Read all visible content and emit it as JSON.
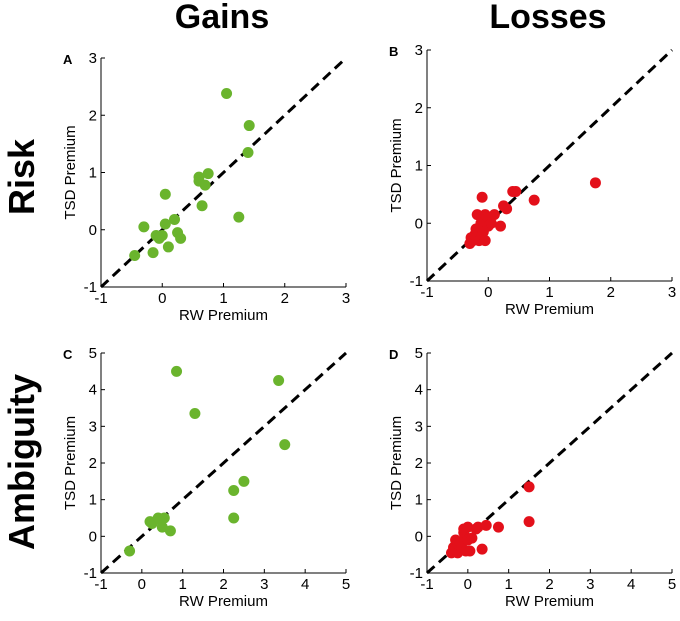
{
  "headers": {
    "columns": [
      "Gains",
      "Losses"
    ],
    "rows": [
      "Risk",
      "Ambiguity"
    ]
  },
  "colors": {
    "gains": "#6ab42d",
    "losses": "#e3101a",
    "identity_line": "#000000"
  },
  "chart_data": [
    {
      "panel": "A",
      "type": "scatter",
      "title": "",
      "xlabel": "RW Premium",
      "ylabel": "TSD Premium",
      "xlim": [
        -1,
        3
      ],
      "ylim": [
        -1,
        3
      ],
      "xticks": [
        -1,
        0,
        1,
        2,
        3
      ],
      "yticks": [
        -1,
        0,
        1,
        2,
        3
      ],
      "identity_line": true,
      "color": "#6ab42d",
      "x": [
        -0.45,
        -0.3,
        -0.15,
        -0.1,
        -0.05,
        0.0,
        0.05,
        0.05,
        0.1,
        0.2,
        0.25,
        0.3,
        0.6,
        0.6,
        0.65,
        0.7,
        0.75,
        1.05,
        1.25,
        1.4,
        1.42
      ],
      "y": [
        -0.45,
        0.05,
        -0.4,
        -0.1,
        -0.15,
        -0.1,
        0.62,
        0.1,
        -0.3,
        0.18,
        -0.05,
        -0.15,
        0.92,
        0.85,
        0.42,
        0.78,
        0.98,
        2.38,
        0.22,
        1.35,
        1.82
      ]
    },
    {
      "panel": "B",
      "type": "scatter",
      "title": "",
      "xlabel": "RW Premium",
      "ylabel": "TSD Premium",
      "xlim": [
        -1,
        3
      ],
      "ylim": [
        -1,
        3
      ],
      "xticks": [
        -1,
        0,
        1,
        2,
        3
      ],
      "yticks": [
        -1,
        0,
        1,
        2,
        3
      ],
      "identity_line": true,
      "color": "#e3101a",
      "x": [
        -0.3,
        -0.28,
        -0.25,
        -0.22,
        -0.2,
        -0.18,
        -0.15,
        -0.12,
        -0.1,
        -0.1,
        -0.08,
        -0.05,
        -0.05,
        0.0,
        0.0,
        0.05,
        0.1,
        0.2,
        0.25,
        0.3,
        0.4,
        0.45,
        0.75,
        1.75
      ],
      "y": [
        -0.35,
        -0.25,
        -0.3,
        -0.2,
        -0.1,
        0.15,
        -0.3,
        0.0,
        -0.2,
        0.45,
        -0.15,
        0.15,
        -0.3,
        0.1,
        -0.05,
        0.0,
        0.15,
        -0.05,
        0.3,
        0.25,
        0.55,
        0.55,
        0.4,
        0.7
      ]
    },
    {
      "panel": "C",
      "type": "scatter",
      "title": "",
      "xlabel": "RW Premium",
      "ylabel": "TSD Premium",
      "xlim": [
        -1,
        5
      ],
      "ylim": [
        -1,
        5
      ],
      "xticks": [
        -1,
        0,
        1,
        2,
        3,
        4,
        5
      ],
      "yticks": [
        -1,
        0,
        1,
        2,
        3,
        4,
        5
      ],
      "identity_line": true,
      "color": "#6ab42d",
      "x": [
        -0.3,
        0.2,
        0.25,
        0.4,
        0.45,
        0.5,
        0.55,
        0.7,
        0.85,
        1.3,
        2.25,
        2.25,
        2.5,
        3.35,
        3.5
      ],
      "y": [
        -0.4,
        0.4,
        0.35,
        0.5,
        0.45,
        0.25,
        0.5,
        0.15,
        4.5,
        3.35,
        1.25,
        0.5,
        1.5,
        4.25,
        2.5
      ]
    },
    {
      "panel": "D",
      "type": "scatter",
      "title": "",
      "xlabel": "RW Premium",
      "ylabel": "TSD Premium",
      "xlim": [
        -1,
        5
      ],
      "ylim": [
        -1,
        5
      ],
      "xticks": [
        -1,
        0,
        1,
        2,
        3,
        4,
        5
      ],
      "yticks": [
        -1,
        0,
        1,
        2,
        3,
        4,
        5
      ],
      "identity_line": true,
      "color": "#e3101a",
      "x": [
        -0.4,
        -0.35,
        -0.3,
        -0.25,
        -0.2,
        -0.15,
        -0.1,
        -0.1,
        -0.05,
        0.0,
        0.0,
        0.05,
        0.1,
        0.2,
        0.25,
        0.35,
        0.45,
        0.75,
        1.5,
        1.5
      ],
      "y": [
        -0.45,
        -0.3,
        -0.1,
        -0.45,
        -0.15,
        -0.3,
        0.1,
        0.2,
        -0.4,
        -0.1,
        0.25,
        -0.4,
        -0.05,
        0.2,
        0.25,
        -0.35,
        0.3,
        0.25,
        0.4,
        1.35
      ]
    }
  ]
}
